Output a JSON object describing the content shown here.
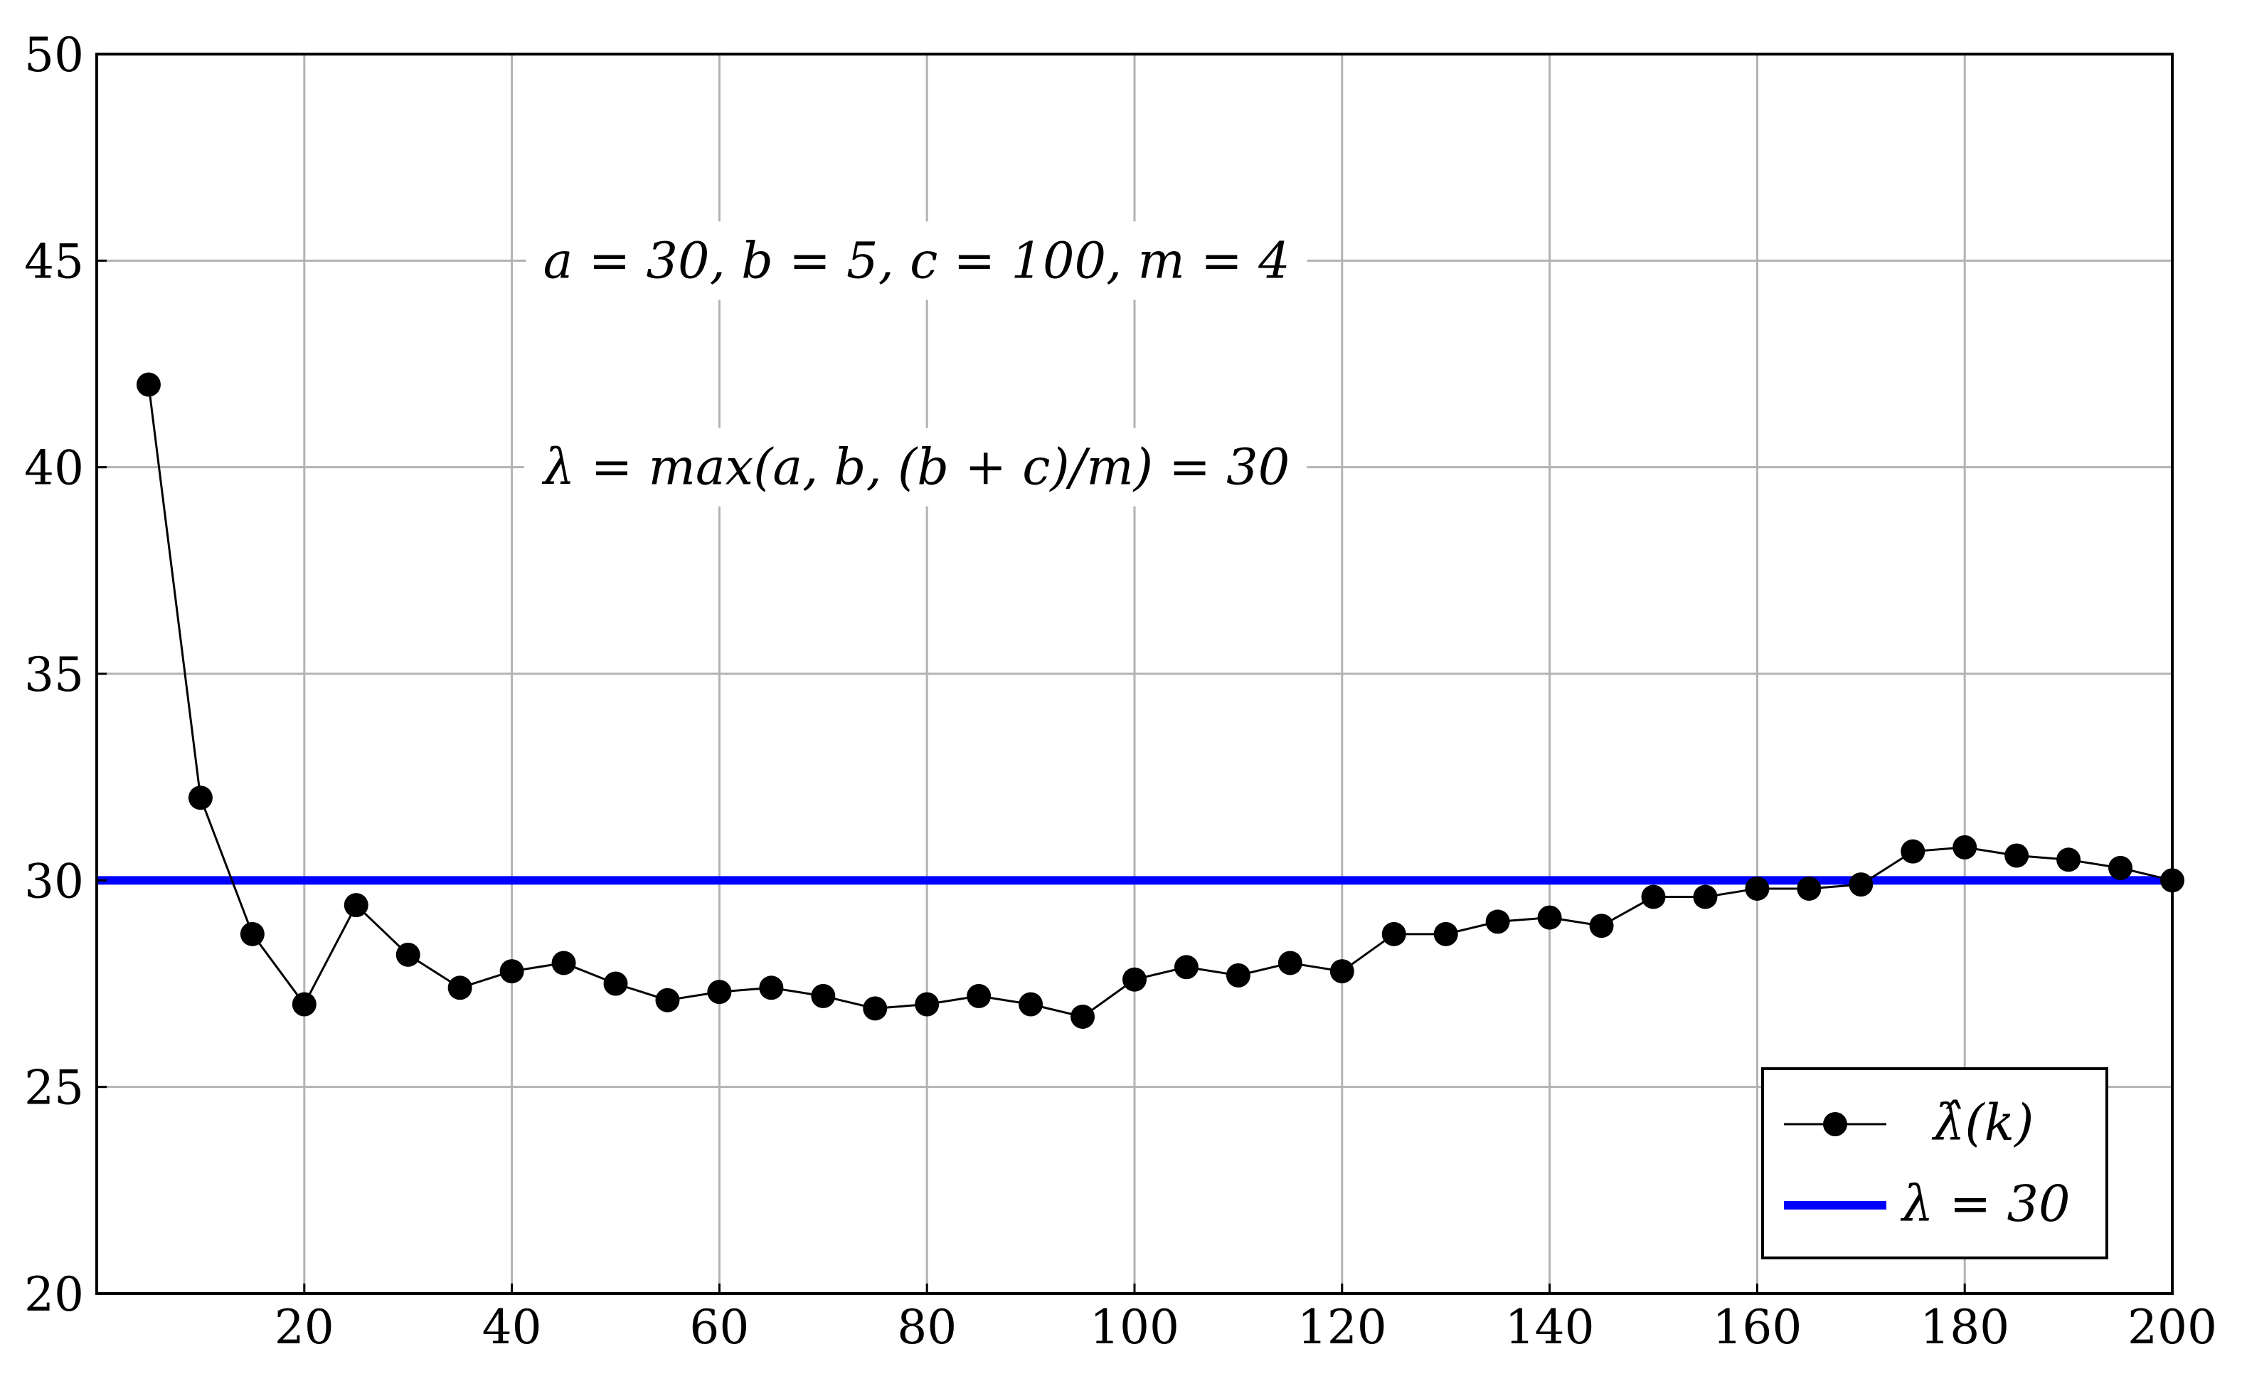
{
  "chart_data": {
    "type": "line",
    "title": "",
    "xlabel": "",
    "ylabel": "",
    "xlim": [
      0,
      200
    ],
    "ylim": [
      20,
      50
    ],
    "xticks": [
      20,
      40,
      60,
      80,
      100,
      120,
      140,
      160,
      180,
      200
    ],
    "yticks": [
      20,
      25,
      30,
      35,
      40,
      45,
      50
    ],
    "grid": true,
    "legend_position": "bottom-right",
    "annotations": [
      "a = 30, b = 5, c = 100, m = 4",
      "λ = max(a, b, (b + c)/m) = 30"
    ],
    "series": [
      {
        "name": "λ̂(k)",
        "color": "#000000",
        "marker": "circle",
        "x": [
          5,
          10,
          15,
          20,
          25,
          30,
          35,
          40,
          45,
          50,
          55,
          60,
          65,
          70,
          75,
          80,
          85,
          90,
          95,
          100,
          105,
          110,
          115,
          120,
          125,
          130,
          135,
          140,
          145,
          150,
          155,
          160,
          165,
          170,
          175,
          180,
          185,
          190,
          195,
          200
        ],
        "y": [
          42.0,
          32.0,
          28.7,
          27.0,
          29.4,
          28.2,
          27.4,
          27.8,
          28.0,
          27.5,
          27.1,
          27.3,
          27.4,
          27.2,
          26.9,
          27.0,
          27.2,
          27.0,
          26.7,
          27.6,
          27.9,
          27.7,
          28.0,
          27.8,
          28.7,
          28.7,
          29.0,
          29.1,
          28.9,
          29.6,
          29.6,
          29.8,
          29.8,
          29.9,
          30.7,
          30.8,
          30.6,
          30.5,
          30.3,
          30.0
        ]
      },
      {
        "name": "λ = 30",
        "color": "#0000ff",
        "type": "hline",
        "y": 30
      }
    ]
  }
}
